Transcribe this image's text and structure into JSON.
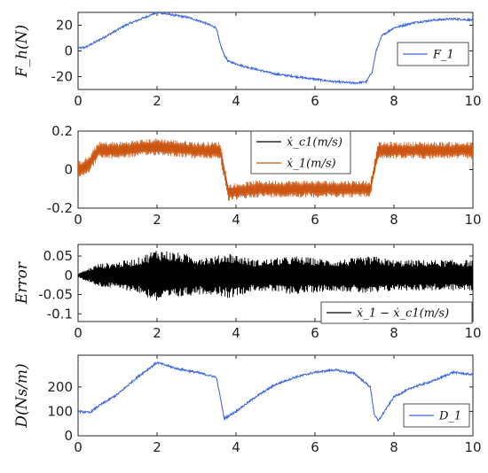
{
  "chart_data": [
    {
      "type": "line",
      "ylabel": "F_h(N)",
      "xlim": [
        0,
        10
      ],
      "ylim": [
        -30,
        30
      ],
      "xticks": [
        "0",
        "2",
        "4",
        "6",
        "8",
        "10"
      ],
      "yticks": [
        "20",
        "0",
        "-20"
      ],
      "legend_position": "right",
      "series": [
        {
          "name": "F_1",
          "color": "#4169e1",
          "x": [
            0,
            0.2,
            0.5,
            0.8,
            1.2,
            1.6,
            2.0,
            2.4,
            2.8,
            3.2,
            3.5,
            3.6,
            3.7,
            3.8,
            4.2,
            4.6,
            5.0,
            5.5,
            6.0,
            6.5,
            7.0,
            7.3,
            7.45,
            7.55,
            7.7,
            8.0,
            8.5,
            9.0,
            9.5,
            10.0
          ],
          "y": [
            2,
            3,
            8,
            13,
            20,
            25,
            30,
            28,
            26,
            22,
            18,
            5,
            -3,
            -8,
            -12,
            -15,
            -18,
            -20,
            -22,
            -24,
            -25,
            -24,
            -16,
            0,
            12,
            18,
            22,
            24,
            25,
            24
          ]
        }
      ]
    },
    {
      "type": "line",
      "xlim": [
        0,
        10
      ],
      "ylim": [
        -0.2,
        0.2
      ],
      "xticks": [
        "0",
        "2",
        "4",
        "6",
        "8",
        "10"
      ],
      "yticks": [
        "0.2",
        "0",
        "-0.2"
      ],
      "legend_position": "top-right",
      "series": [
        {
          "name": "ẋ_c1(m/s)",
          "color": "#000000",
          "x": [
            0,
            0.2,
            0.4,
            0.5,
            3.6,
            3.8,
            7.4,
            7.6,
            10
          ],
          "y": [
            0,
            0.01,
            0.08,
            0.1,
            0.1,
            -0.1,
            -0.1,
            0.1,
            0.1
          ]
        },
        {
          "name": "ẋ_1(m/s)",
          "color": "#cc5511",
          "x": [
            0,
            0.3,
            0.5,
            1.0,
            2.0,
            3.0,
            3.6,
            3.8,
            4.5,
            5.5,
            6.5,
            7.4,
            7.6,
            8.5,
            9.5,
            10
          ],
          "y": [
            0,
            0.03,
            0.1,
            0.1,
            0.12,
            0.1,
            0.1,
            -0.12,
            -0.1,
            -0.1,
            -0.1,
            -0.1,
            0.1,
            0.1,
            0.1,
            0.1
          ],
          "oscillation_amplitude": 0.045
        }
      ]
    },
    {
      "type": "line",
      "ylabel": "Error",
      "xlim": [
        0,
        10
      ],
      "ylim": [
        -0.12,
        0.08
      ],
      "xticks": [
        "0",
        "2",
        "4",
        "6",
        "8",
        "10"
      ],
      "yticks": [
        "0.05",
        "0",
        "-0.05",
        "-0.1"
      ],
      "legend_position": "bottom-right",
      "series": [
        {
          "name": "ẋ_1 − ẋ_c1(m/s)",
          "color": "#000000",
          "x": [
            0,
            0.5,
            1.0,
            1.5,
            2.0,
            2.5,
            3.0,
            3.5,
            3.8,
            4.5,
            5.5,
            6.5,
            7.5,
            8.0,
            9.0,
            10.0
          ],
          "amplitude": [
            0.005,
            0.03,
            0.035,
            0.045,
            0.07,
            0.06,
            0.05,
            0.05,
            0.06,
            0.04,
            0.05,
            0.04,
            0.05,
            0.04,
            0.04,
            0.04
          ]
        }
      ]
    },
    {
      "type": "line",
      "ylabel": "D(Ns/m)",
      "xlim": [
        0,
        10
      ],
      "ylim": [
        0,
        330
      ],
      "xticks": [
        "0",
        "2",
        "4",
        "6",
        "8",
        "10"
      ],
      "yticks": [
        "200",
        "100",
        "0"
      ],
      "legend_position": "bottom-right",
      "series": [
        {
          "name": "D_1",
          "color": "#4169e1",
          "x": [
            0,
            0.3,
            0.5,
            1.0,
            1.5,
            2.0,
            2.5,
            3.0,
            3.5,
            3.6,
            3.7,
            4.0,
            4.5,
            5.0,
            5.5,
            6.0,
            6.5,
            7.0,
            7.4,
            7.5,
            7.6,
            8.0,
            8.5,
            9.0,
            9.5,
            10.0
          ],
          "y": [
            100,
            95,
            120,
            170,
            240,
            300,
            275,
            260,
            240,
            160,
            70,
            100,
            160,
            210,
            240,
            260,
            270,
            255,
            200,
            90,
            60,
            160,
            200,
            225,
            260,
            250
          ]
        }
      ]
    }
  ]
}
